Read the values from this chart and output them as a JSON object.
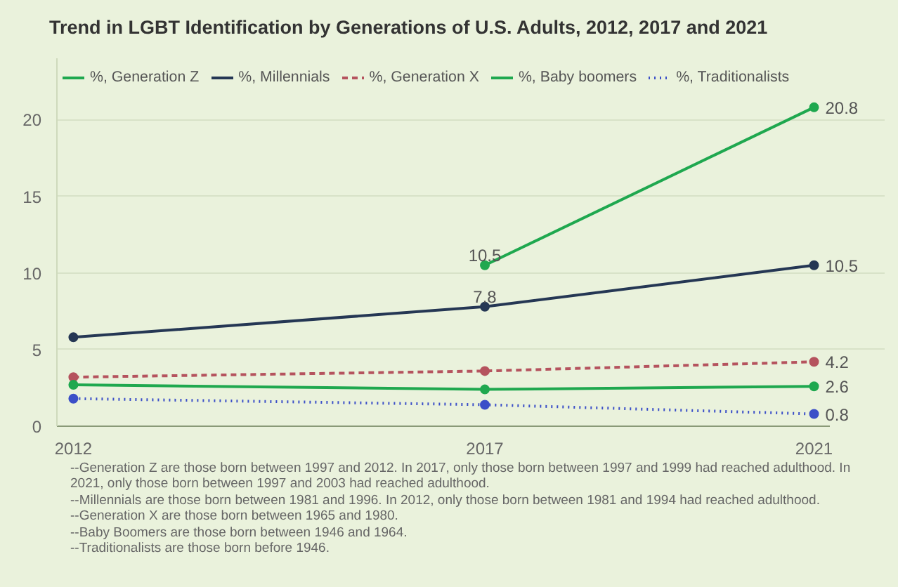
{
  "chart_data": {
    "type": "line",
    "title": "Trend in LGBT Identification by Generations of U.S. Adults, 2012, 2017 and 2021",
    "x": [
      2012,
      2017,
      2021
    ],
    "xlim": [
      2011.8,
      2021.2
    ],
    "xticks": [
      2012,
      2017,
      2021
    ],
    "ylim": [
      0,
      24
    ],
    "yticks": [
      0,
      5,
      10,
      15,
      20
    ],
    "grid": "y",
    "legend": "top left",
    "marker": "circle",
    "series": [
      {
        "name": "%, Generation Z",
        "color": "#1fa84f",
        "line_style": "solid",
        "values": [
          null,
          10.5,
          20.8
        ],
        "value_labels": [
          null,
          "10.5",
          "20.8"
        ]
      },
      {
        "name": "%, Millennials",
        "color": "#253754",
        "line_style": "solid",
        "values": [
          5.8,
          7.8,
          10.5
        ],
        "value_labels": [
          null,
          "7.8",
          "10.5"
        ]
      },
      {
        "name": "%, Generation X",
        "color": "#b5535e",
        "line_style": "dashed",
        "values": [
          3.2,
          3.6,
          4.2
        ],
        "value_labels": [
          null,
          null,
          "4.2"
        ]
      },
      {
        "name": "%, Baby boomers",
        "color": "#1fa84f",
        "line_style": "solid",
        "values": [
          2.7,
          2.4,
          2.6
        ],
        "value_labels": [
          null,
          null,
          "2.6"
        ]
      },
      {
        "name": "%, Traditionalists",
        "color": "#3b4fc8",
        "line_style": "dotted",
        "values": [
          1.8,
          1.4,
          0.8
        ],
        "value_labels": [
          null,
          null,
          "0.8"
        ]
      }
    ],
    "annotations": [
      "--Generation Z are those born between 1997 and 2012. In 2017, only those born between 1997 and 1999 had reached adulthood. In 2021, only those born between 1997 and 2003 had reached adulthood.",
      "--Millennials are those born between 1981 and 1996. In 2012, only those born between 1981 and 1994 had reached adulthood.",
      "--Generation X are those born between 1965 and 1980.",
      "--Baby Boomers are those born between 1946 and 1964.",
      "--Traditionalists are those born before 1946."
    ]
  }
}
